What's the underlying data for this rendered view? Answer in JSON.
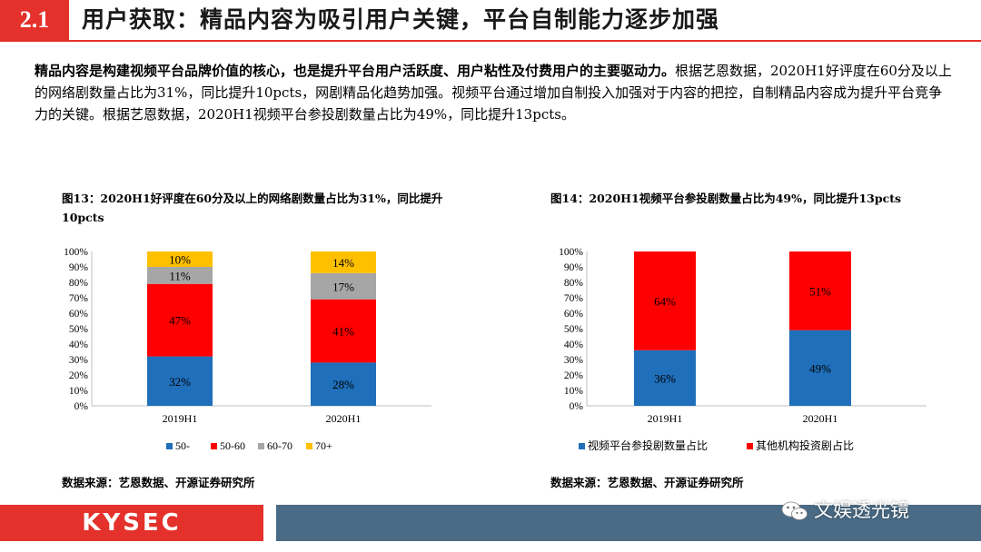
{
  "header": {
    "section_number": "2.1",
    "title": "用户获取：精品内容为吸引用户关键，平台自制能力逐步加强"
  },
  "intro": {
    "lead": "精品内容是构建视频平台品牌价值的核心，也是提升平台用户活跃度、用户粘性及付费用户的主要驱动力。",
    "body": "根据艺恩数据，2020H1好评度在60分及以上的网络剧数量占比为31%，同比提升10pcts，网剧精品化趋势加强。视频平台通过增加自制投入加强对于内容的把控，自制精品内容成为提升平台竞争力的关键。根据艺恩数据，2020H1视频平台参投剧数量占比为49%，同比提升13pcts。"
  },
  "fig13": {
    "title": "图13：2020H1好评度在60分及以上的网络剧数量占比为31%，同比提升10pcts",
    "source": "数据来源：艺恩数据、开源证券研究所"
  },
  "fig14": {
    "title": "图14：2020H1视频平台参投剧数量占比为49%，同比提升13pcts",
    "source": "数据来源：艺恩数据、开源证券研究所"
  },
  "chart_data": [
    {
      "type": "bar",
      "stacked": true,
      "categories": [
        "2019H1",
        "2020H1"
      ],
      "series": [
        {
          "name": "50-",
          "values": [
            32,
            28
          ],
          "color": "#1f6fba"
        },
        {
          "name": "50-60",
          "values": [
            47,
            41
          ],
          "color": "#ff0000"
        },
        {
          "name": "60-70",
          "values": [
            11,
            17
          ],
          "color": "#a6a6a6"
        },
        {
          "name": "70+",
          "values": [
            10,
            14
          ],
          "color": "#ffc000"
        }
      ],
      "ylim": [
        0,
        100
      ],
      "yticks": [
        "0%",
        "10%",
        "20%",
        "30%",
        "40%",
        "50%",
        "60%",
        "70%",
        "80%",
        "90%",
        "100%"
      ],
      "legend": "bottom",
      "grid": false
    },
    {
      "type": "bar",
      "stacked": true,
      "categories": [
        "2019H1",
        "2020H1"
      ],
      "series": [
        {
          "name": "视频平台参投剧数量占比",
          "values": [
            36,
            49
          ],
          "color": "#1f6fba"
        },
        {
          "name": "其他机构投资剧占比",
          "values": [
            64,
            51
          ],
          "color": "#ff0000"
        }
      ],
      "ylim": [
        0,
        100
      ],
      "yticks": [
        "0%",
        "10%",
        "20%",
        "30%",
        "40%",
        "50%",
        "60%",
        "70%",
        "80%",
        "90%",
        "100%"
      ],
      "legend": "bottom",
      "grid": false
    }
  ],
  "footer": {
    "logo_text": "KYSEC",
    "watermark": "文娱透光镜",
    "watermark_icon": "wechat-icon"
  }
}
